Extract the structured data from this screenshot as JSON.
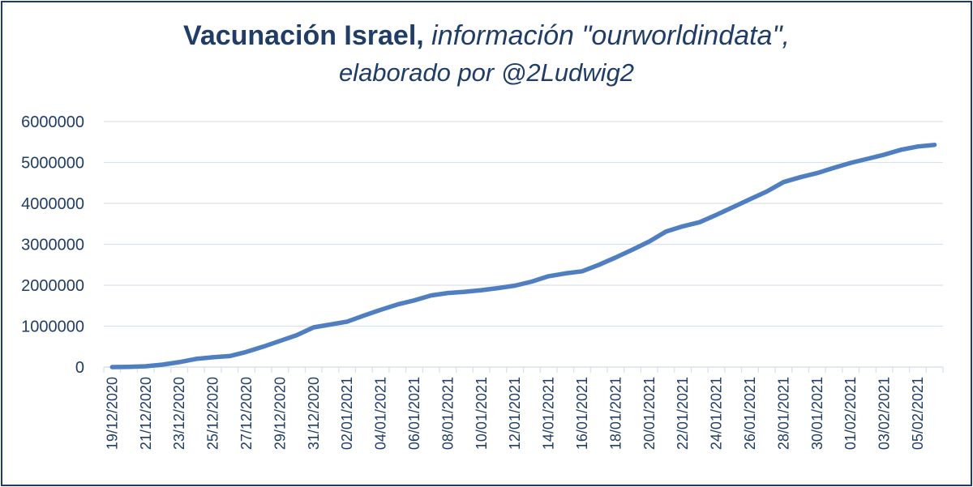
{
  "title": {
    "bold": "Vacunación Israel,",
    "italic": "información \"ourworldindata\",",
    "line2": "elaborado por @2Ludwig2"
  },
  "colors": {
    "line": "#4f7fc0",
    "text": "#1f3d66",
    "grid": "#d9e2ef",
    "frame": "#1f3d66"
  },
  "chart_data": {
    "type": "line",
    "ylim": [
      0,
      6000000
    ],
    "yticks": [
      "0",
      "1000000",
      "2000000",
      "3000000",
      "4000000",
      "5000000",
      "6000000"
    ],
    "xtick_labels": [
      "19/12/2020",
      "21/12/2020",
      "23/12/2020",
      "25/12/2020",
      "27/12/2020",
      "29/12/2020",
      "31/12/2020",
      "02/01/2021",
      "04/01/2021",
      "06/01/2021",
      "08/01/2021",
      "10/01/2021",
      "12/01/2021",
      "14/01/2021",
      "16/01/2021",
      "18/01/2021",
      "20/01/2021",
      "22/01/2021",
      "24/01/2021",
      "26/01/2021",
      "28/01/2021",
      "30/01/2021",
      "01/02/2021",
      "03/02/2021",
      "05/02/2021"
    ],
    "categories": [
      "19/12/2020",
      "20/12/2020",
      "21/12/2020",
      "22/12/2020",
      "23/12/2020",
      "24/12/2020",
      "25/12/2020",
      "26/12/2020",
      "27/12/2020",
      "28/12/2020",
      "29/12/2020",
      "30/12/2020",
      "31/12/2020",
      "01/01/2021",
      "02/01/2021",
      "03/01/2021",
      "04/01/2021",
      "05/01/2021",
      "06/01/2021",
      "07/01/2021",
      "08/01/2021",
      "09/01/2021",
      "10/01/2021",
      "11/01/2021",
      "12/01/2021",
      "13/01/2021",
      "14/01/2021",
      "15/01/2021",
      "16/01/2021",
      "17/01/2021",
      "18/01/2021",
      "19/01/2021",
      "20/01/2021",
      "21/01/2021",
      "22/01/2021",
      "23/01/2021",
      "24/01/2021",
      "25/01/2021",
      "26/01/2021",
      "27/01/2021",
      "28/01/2021",
      "29/01/2021",
      "30/01/2021",
      "31/01/2021",
      "01/02/2021",
      "02/02/2021",
      "03/02/2021",
      "04/02/2021",
      "05/02/2021",
      "06/02/2021"
    ],
    "series": [
      {
        "values": [
          0,
          5000,
          20000,
          60000,
          120000,
          200000,
          240000,
          270000,
          370000,
          500000,
          640000,
          780000,
          970000,
          1040000,
          1110000,
          1260000,
          1400000,
          1530000,
          1630000,
          1750000,
          1810000,
          1840000,
          1880000,
          1930000,
          1990000,
          2090000,
          2220000,
          2290000,
          2340000,
          2500000,
          2680000,
          2870000,
          3070000,
          3310000,
          3440000,
          3540000,
          3720000,
          3910000,
          4100000,
          4290000,
          4520000,
          4640000,
          4740000,
          4870000,
          4990000,
          5090000,
          5190000,
          5310000,
          5390000,
          5430000
        ]
      }
    ],
    "grid": true,
    "legend": "none"
  }
}
